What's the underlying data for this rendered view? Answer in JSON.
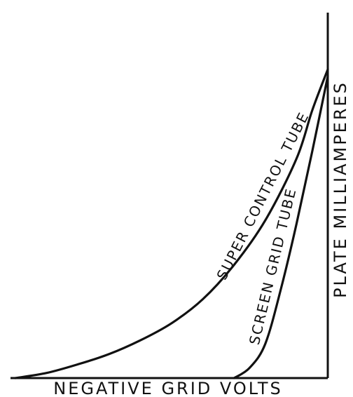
{
  "chart_data": {
    "type": "line",
    "xlabel": "NEGATIVE GRID VOLTS",
    "ylabel": "PLATE MILLIAMPERES",
    "grid": false,
    "legend": "none",
    "series": [
      {
        "name": "SUPER CONTROL TUBE",
        "color": "#111111",
        "points": [
          {
            "x": 0.0,
            "y": 0.9
          },
          {
            "x": 0.05,
            "y": 0.78
          },
          {
            "x": 0.1,
            "y": 0.64
          },
          {
            "x": 0.2,
            "y": 0.46
          },
          {
            "x": 0.3,
            "y": 0.33
          },
          {
            "x": 0.4,
            "y": 0.23
          },
          {
            "x": 0.5,
            "y": 0.16
          },
          {
            "x": 0.6,
            "y": 0.11
          },
          {
            "x": 0.7,
            "y": 0.07
          },
          {
            "x": 0.8,
            "y": 0.04
          },
          {
            "x": 0.9,
            "y": 0.015
          },
          {
            "x": 1.0,
            "y": 0.0
          }
        ]
      },
      {
        "name": "SCREEN GRID TUBE",
        "color": "#111111",
        "points": [
          {
            "x": 0.0,
            "y": 0.88
          },
          {
            "x": 0.05,
            "y": 0.66
          },
          {
            "x": 0.1,
            "y": 0.45
          },
          {
            "x": 0.15,
            "y": 0.26
          },
          {
            "x": 0.2,
            "y": 0.1
          },
          {
            "x": 0.25,
            "y": 0.03
          },
          {
            "x": 0.3,
            "y": 0.0
          }
        ]
      }
    ]
  }
}
